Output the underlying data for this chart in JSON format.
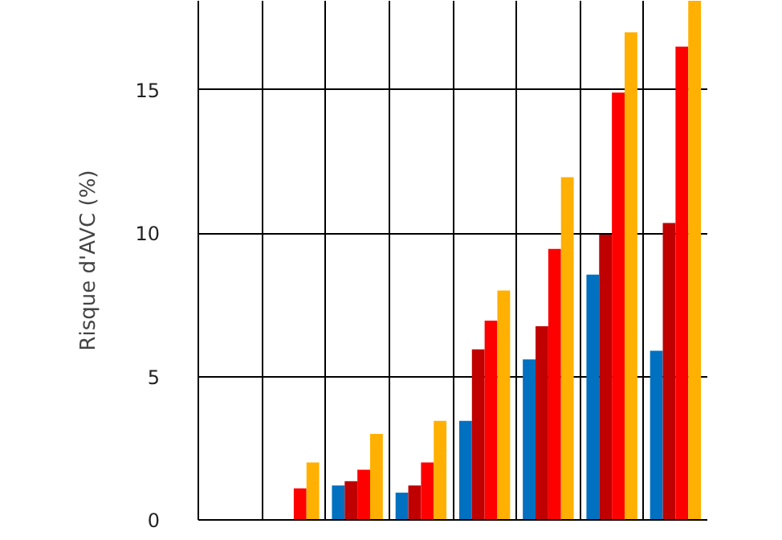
{
  "chart_data": {
    "type": "bar",
    "ylabel": "Risque d'AVC (%)",
    "categories": [
      null,
      null,
      null,
      null,
      null,
      null,
      null,
      null
    ],
    "series": [
      {
        "color": "#0070c0",
        "values": [
          null,
          null,
          1.2,
          0.95,
          3.45,
          5.6,
          8.55,
          5.9
        ]
      },
      {
        "color": "#c00000",
        "values": [
          null,
          null,
          1.35,
          1.2,
          5.95,
          6.75,
          9.95,
          10.35
        ]
      },
      {
        "color": "#ff0000",
        "values": [
          null,
          1.1,
          1.75,
          2.0,
          6.95,
          9.45,
          14.9,
          16.5
        ]
      },
      {
        "color": "#ffb000",
        "values": [
          null,
          2.0,
          3.0,
          3.45,
          8.0,
          11.95,
          17.0,
          18.1
        ]
      }
    ],
    "ylim": [
      0,
      18.1
    ],
    "yticks": [
      0,
      5,
      10,
      15
    ],
    "grid": true,
    "tick_labels": "y"
  }
}
